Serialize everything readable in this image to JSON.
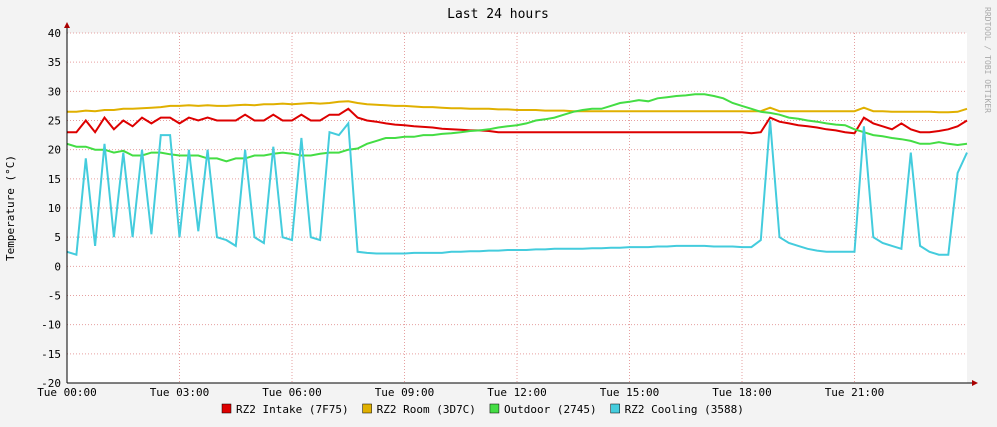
{
  "chart_data": {
    "type": "line",
    "title": "Last 24 hours",
    "y_label": "Temperature (°C)",
    "watermark": "RRDTOOL / TOBI OETIKER",
    "x": [
      0,
      0.25,
      0.5,
      0.75,
      1,
      1.25,
      1.5,
      1.75,
      2,
      2.25,
      2.5,
      2.75,
      3,
      3.25,
      3.5,
      3.75,
      4,
      4.25,
      4.5,
      4.75,
      5,
      5.25,
      5.5,
      5.75,
      6,
      6.25,
      6.5,
      6.75,
      7,
      7.25,
      7.5,
      7.75,
      8,
      8.25,
      8.5,
      8.75,
      9,
      9.25,
      9.5,
      9.75,
      10,
      10.25,
      10.5,
      10.75,
      11,
      11.25,
      11.5,
      11.75,
      12,
      12.25,
      12.5,
      12.75,
      13,
      13.25,
      13.5,
      13.75,
      14,
      14.25,
      14.5,
      14.75,
      15,
      15.25,
      15.5,
      15.75,
      16,
      16.25,
      16.5,
      16.75,
      17,
      17.25,
      17.5,
      17.75,
      18,
      18.25,
      18.5,
      18.75,
      19,
      19.25,
      19.5,
      19.75,
      20,
      20.25,
      20.5,
      20.75,
      21,
      21.25,
      21.5,
      21.75,
      22,
      22.25,
      22.5,
      22.75,
      23,
      23.25,
      23.5,
      23.75,
      24
    ],
    "series": [
      {
        "name": "RZ2 Intake (7F75)",
        "color": "#dd0000",
        "values": [
          23,
          23,
          25,
          23,
          25.5,
          23.5,
          25,
          24,
          25.5,
          24.5,
          25.5,
          25.5,
          24.5,
          25.5,
          25,
          25.5,
          25,
          25,
          25,
          26,
          25,
          25,
          26,
          25,
          25,
          26,
          25,
          25,
          26,
          26,
          27,
          25.5,
          25,
          24.8,
          24.5,
          24.3,
          24.2,
          24,
          23.9,
          23.8,
          23.6,
          23.5,
          23.4,
          23.3,
          23.3,
          23.2,
          23,
          23,
          23,
          23,
          23,
          23,
          23,
          23,
          23,
          23,
          23,
          23,
          23,
          23,
          23,
          23,
          23,
          23,
          23,
          23,
          23,
          23,
          23,
          23,
          23,
          23,
          23,
          22.8,
          23,
          25.5,
          24.8,
          24.5,
          24.2,
          24,
          23.8,
          23.5,
          23.3,
          23,
          22.8,
          25.5,
          24.5,
          24,
          23.5,
          24.5,
          23.5,
          23,
          23,
          23.2,
          23.5,
          24,
          25
        ]
      },
      {
        "name": "RZ2 Room (3D7C)",
        "color": "#e0b000",
        "values": [
          26.5,
          26.5,
          26.7,
          26.6,
          26.8,
          26.8,
          27,
          27,
          27.1,
          27.2,
          27.3,
          27.5,
          27.5,
          27.6,
          27.5,
          27.6,
          27.5,
          27.5,
          27.6,
          27.7,
          27.6,
          27.8,
          27.8,
          27.9,
          27.8,
          27.9,
          28,
          27.9,
          28,
          28.2,
          28.3,
          28,
          27.8,
          27.7,
          27.6,
          27.5,
          27.5,
          27.4,
          27.3,
          27.3,
          27.2,
          27.1,
          27.1,
          27,
          27,
          27,
          26.9,
          26.9,
          26.8,
          26.8,
          26.8,
          26.7,
          26.7,
          26.7,
          26.6,
          26.6,
          26.6,
          26.6,
          26.6,
          26.6,
          26.6,
          26.6,
          26.6,
          26.6,
          26.6,
          26.6,
          26.6,
          26.6,
          26.6,
          26.6,
          26.6,
          26.6,
          26.6,
          26.6,
          26.6,
          27.2,
          26.6,
          26.6,
          26.6,
          26.6,
          26.6,
          26.6,
          26.6,
          26.6,
          26.6,
          27.2,
          26.6,
          26.6,
          26.5,
          26.5,
          26.5,
          26.5,
          26.5,
          26.4,
          26.4,
          26.5,
          27
        ]
      },
      {
        "name": "Outdoor (2745)",
        "color": "#44dd44",
        "values": [
          21,
          20.5,
          20.5,
          20,
          20,
          19.5,
          19.8,
          19,
          19,
          19.5,
          19.5,
          19.2,
          19,
          19,
          19,
          18.5,
          18.5,
          18,
          18.5,
          18.5,
          19,
          19,
          19.3,
          19.5,
          19.3,
          19,
          19,
          19.3,
          19.5,
          19.5,
          20,
          20.2,
          21,
          21.5,
          22,
          22,
          22.2,
          22.2,
          22.5,
          22.5,
          22.7,
          22.8,
          23,
          23.2,
          23.3,
          23.5,
          23.8,
          24,
          24.2,
          24.5,
          25,
          25.2,
          25.5,
          26,
          26.5,
          26.8,
          27,
          27,
          27.5,
          28,
          28.2,
          28.5,
          28.3,
          28.8,
          29,
          29.2,
          29.3,
          29.5,
          29.5,
          29.2,
          28.8,
          28,
          27.5,
          27,
          26.5,
          26.3,
          26,
          25.5,
          25.3,
          25,
          24.8,
          24.5,
          24.3,
          24.2,
          23.5,
          23,
          22.5,
          22.3,
          22,
          21.8,
          21.5,
          21,
          21,
          21.3,
          21,
          20.8,
          21
        ]
      },
      {
        "name": "RZ2 Cooling (3588)",
        "color": "#44ccdd",
        "values": [
          2.5,
          2,
          18.5,
          3.5,
          21,
          5,
          19.5,
          5,
          20,
          5.5,
          22.5,
          22.5,
          5,
          20,
          6,
          20,
          5,
          4.5,
          3.5,
          20,
          5,
          4,
          20.5,
          5,
          4.5,
          22,
          5,
          4.5,
          23,
          22.5,
          24.5,
          2.5,
          2.3,
          2.2,
          2.2,
          2.2,
          2.2,
          2.3,
          2.3,
          2.3,
          2.3,
          2.5,
          2.5,
          2.6,
          2.6,
          2.7,
          2.7,
          2.8,
          2.8,
          2.8,
          2.9,
          2.9,
          3,
          3,
          3,
          3,
          3.1,
          3.1,
          3.2,
          3.2,
          3.3,
          3.3,
          3.3,
          3.4,
          3.4,
          3.5,
          3.5,
          3.5,
          3.5,
          3.4,
          3.4,
          3.4,
          3.3,
          3.3,
          4.5,
          25,
          5,
          4,
          3.5,
          3,
          2.7,
          2.5,
          2.5,
          2.5,
          2.5,
          24,
          5,
          4,
          3.5,
          3,
          19.5,
          3.5,
          2.5,
          2,
          2,
          16,
          19.5
        ]
      }
    ],
    "xlim": [
      0,
      24
    ],
    "xticks": [
      {
        "value": 0,
        "label": "Tue 00:00"
      },
      {
        "value": 3,
        "label": "Tue 03:00"
      },
      {
        "value": 6,
        "label": "Tue 06:00"
      },
      {
        "value": 9,
        "label": "Tue 09:00"
      },
      {
        "value": 12,
        "label": "Tue 12:00"
      },
      {
        "value": 15,
        "label": "Tue 15:00"
      },
      {
        "value": 18,
        "label": "Tue 18:00"
      },
      {
        "value": 21,
        "label": "Tue 21:00"
      }
    ],
    "ylim": [
      -20,
      40
    ],
    "yticks": [
      -20,
      -15,
      -10,
      -5,
      0,
      5,
      10,
      15,
      20,
      25,
      30,
      35,
      40
    ],
    "grid": true,
    "legend": "bottom"
  }
}
